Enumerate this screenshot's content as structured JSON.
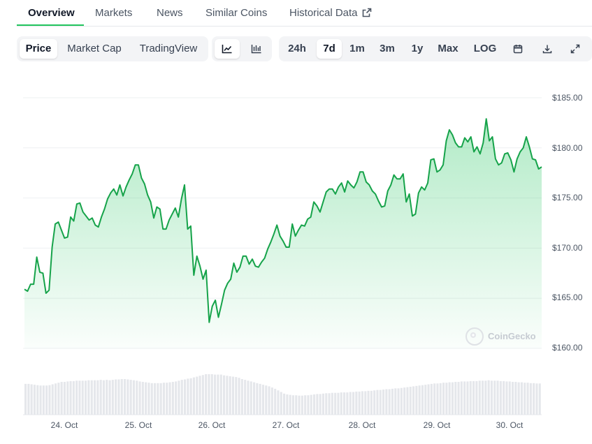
{
  "tabs": [
    {
      "label": "Overview",
      "active": true
    },
    {
      "label": "Markets"
    },
    {
      "label": "News"
    },
    {
      "label": "Similar Coins"
    },
    {
      "label": "Historical Data"
    }
  ],
  "chart_modes": {
    "price": "Price",
    "market_cap": "Market Cap",
    "tradingview": "TradingView"
  },
  "chart_type_icons": [
    "line-chart-icon",
    "candlestick-chart-icon"
  ],
  "ranges": {
    "d24h": "24h",
    "d7d": "7d",
    "m1": "1m",
    "m3": "3m",
    "y1": "1y",
    "max": "Max",
    "log": "LOG"
  },
  "range_selected": "7d",
  "toolbar_icons": [
    "calendar-icon",
    "download-icon",
    "expand-icon"
  ],
  "watermark": "CoinGecko",
  "colors": {
    "line": "#16a34a",
    "accent": "#22c55e",
    "fill_top": "#bbf7d0",
    "volume": "#e5e7eb"
  },
  "chart_data": {
    "type": "area",
    "y_ticks": [
      "$185.00",
      "$180.00",
      "$175.00",
      "$170.00",
      "$165.00",
      "$160.00"
    ],
    "ylim": [
      160,
      185
    ],
    "x_ticks": [
      "24. Oct",
      "25. Oct",
      "26. Oct",
      "27. Oct",
      "28. Oct",
      "29. Oct",
      "30. Oct"
    ],
    "grid": true,
    "series": [
      {
        "values": [
          165.9,
          165.7,
          166.4,
          166.4,
          169.1,
          167.6,
          167.5,
          165.5,
          165.8,
          170.1,
          172.4,
          172.6,
          171.8,
          171.0,
          171.1,
          173.1,
          172.7,
          174.4,
          174.5,
          173.6,
          173.2,
          172.8,
          173.0,
          172.3,
          172.1,
          173.1,
          173.9,
          174.9,
          175.5,
          175.9,
          175.3,
          176.3,
          175.2,
          176.1,
          176.8,
          177.4,
          178.3,
          178.3,
          177.0,
          176.4,
          175.3,
          174.6,
          173.0,
          174.1,
          173.9,
          171.9,
          171.9,
          172.8,
          173.4,
          174.0,
          173.1,
          174.9,
          176.3,
          171.9,
          172.2,
          167.3,
          169.2,
          168.2,
          166.9,
          167.8,
          162.6,
          164.2,
          164.8,
          163.1,
          164.4,
          165.8,
          166.5,
          166.9,
          168.5,
          167.6,
          168.1,
          169.2,
          169.2,
          168.4,
          168.9,
          168.2,
          168.1,
          168.6,
          169.0,
          169.9,
          170.6,
          171.4,
          172.3,
          171.2,
          170.7,
          170.1,
          170.1,
          172.4,
          171.2,
          171.8,
          172.3,
          172.2,
          172.9,
          173.1,
          174.6,
          174.2,
          173.6,
          174.6,
          175.6,
          175.9,
          175.9,
          175.4,
          176.1,
          176.5,
          175.6,
          176.7,
          176.3,
          176.0,
          176.6,
          177.6,
          177.6,
          176.6,
          176.3,
          175.7,
          175.4,
          174.7,
          174.1,
          174.2,
          175.7,
          176.3,
          177.3,
          176.9,
          176.9,
          177.4,
          174.6,
          175.4,
          173.2,
          173.4,
          175.5,
          176.1,
          175.8,
          176.5,
          178.8,
          178.9,
          177.6,
          177.8,
          178.3,
          180.7,
          181.8,
          181.3,
          180.5,
          180.1,
          180.1,
          181.0,
          180.6,
          181.1,
          179.6,
          180.1,
          179.4,
          180.5,
          182.9,
          180.7,
          181.1,
          178.9,
          178.3,
          178.5,
          179.4,
          179.5,
          178.8,
          177.6,
          178.9,
          179.6,
          180.0,
          181.1,
          180.1,
          178.9,
          178.8,
          177.9,
          178.1
        ]
      }
    ],
    "volume": [
      0.76,
      0.76,
      0.75,
      0.74,
      0.73,
      0.72,
      0.72,
      0.72,
      0.73,
      0.75,
      0.77,
      0.79,
      0.81,
      0.81,
      0.82,
      0.83,
      0.83,
      0.84,
      0.84,
      0.84,
      0.84,
      0.85,
      0.85,
      0.85,
      0.85,
      0.86,
      0.85,
      0.86,
      0.85,
      0.86,
      0.87,
      0.87,
      0.88,
      0.88,
      0.87,
      0.86,
      0.85,
      0.84,
      0.82,
      0.81,
      0.8,
      0.79,
      0.78,
      0.78,
      0.78,
      0.78,
      0.79,
      0.79,
      0.8,
      0.81,
      0.82,
      0.84,
      0.86,
      0.87,
      0.89,
      0.9,
      0.92,
      0.94,
      0.96,
      0.98,
      1.0,
      1.0,
      1.0,
      0.99,
      0.99,
      0.99,
      0.97,
      0.96,
      0.95,
      0.94,
      0.93,
      0.91,
      0.88,
      0.86,
      0.84,
      0.82,
      0.8,
      0.78,
      0.76,
      0.74,
      0.72,
      0.7,
      0.67,
      0.64,
      0.6,
      0.56,
      0.52,
      0.5,
      0.49,
      0.48,
      0.48,
      0.47,
      0.47,
      0.48,
      0.48,
      0.49,
      0.5,
      0.51,
      0.51,
      0.52,
      0.53,
      0.53,
      0.54,
      0.54,
      0.54,
      0.55,
      0.55,
      0.55,
      0.56,
      0.56,
      0.57,
      0.57,
      0.58,
      0.58,
      0.59,
      0.59,
      0.6,
      0.61,
      0.61,
      0.62,
      0.63,
      0.63,
      0.64,
      0.65,
      0.65,
      0.66,
      0.67,
      0.68,
      0.69,
      0.7,
      0.71,
      0.72,
      0.73,
      0.74,
      0.75,
      0.76,
      0.77,
      0.77,
      0.78,
      0.79,
      0.79,
      0.8,
      0.8,
      0.81,
      0.81,
      0.82,
      0.82,
      0.82,
      0.83,
      0.83,
      0.83,
      0.84,
      0.84,
      0.84,
      0.85,
      0.84,
      0.84,
      0.84,
      0.83,
      0.83,
      0.82,
      0.82,
      0.81,
      0.81,
      0.8,
      0.8,
      0.79,
      0.79,
      0.78,
      0.78,
      0.77,
      0.77
    ]
  }
}
